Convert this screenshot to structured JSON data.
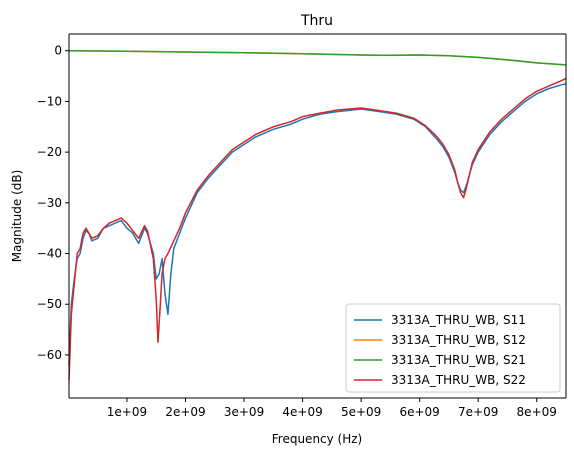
{
  "chart_data": {
    "type": "line",
    "title": "Thru",
    "xlabel": "Frequency (Hz)",
    "ylabel": "Magnitude (dB)",
    "xlim": [
      10000000,
      8500000000
    ],
    "ylim": [
      -68.5,
      3.3
    ],
    "x_ticks": [
      {
        "value": 1000000000,
        "label": "1e+09"
      },
      {
        "value": 2000000000,
        "label": "2e+09"
      },
      {
        "value": 3000000000,
        "label": "3e+09"
      },
      {
        "value": 4000000000,
        "label": "4e+09"
      },
      {
        "value": 5000000000,
        "label": "5e+09"
      },
      {
        "value": 6000000000,
        "label": "6e+09"
      },
      {
        "value": 7000000000,
        "label": "7e+09"
      },
      {
        "value": 8000000000,
        "label": "8e+09"
      }
    ],
    "y_ticks": [
      {
        "value": 0,
        "label": "0"
      },
      {
        "value": -10,
        "label": "−10"
      },
      {
        "value": -20,
        "label": "−20"
      },
      {
        "value": -30,
        "label": "−30"
      },
      {
        "value": -40,
        "label": "−40"
      },
      {
        "value": -50,
        "label": "−50"
      },
      {
        "value": -60,
        "label": "−60"
      }
    ],
    "grid": false,
    "legend_position": "bottom-right",
    "series": [
      {
        "name": "3313A_THRU_WB, S11",
        "color": "#1f77b4",
        "x": [
          10000000,
          50000000,
          100000000,
          150000000,
          200000000,
          250000000,
          300000000,
          350000000,
          400000000,
          500000000,
          600000000,
          700000000,
          800000000,
          900000000,
          1000000000,
          1100000000,
          1200000000,
          1300000000,
          1350000000,
          1450000000,
          1500000000,
          1550000000,
          1600000000,
          1650000000,
          1700000000,
          1750000000,
          1800000000,
          1900000000,
          2000000000,
          2200000000,
          2400000000,
          2600000000,
          2800000000,
          3000000000,
          3200000000,
          3500000000,
          3800000000,
          4000000000,
          4300000000,
          4600000000,
          5000000000,
          5300000000,
          5600000000,
          5900000000,
          6100000000,
          6300000000,
          6400000000,
          6500000000,
          6600000000,
          6650000000,
          6700000000,
          6750000000,
          6800000000,
          6900000000,
          7000000000,
          7200000000,
          7400000000,
          7600000000,
          7800000000,
          8000000000,
          8200000000,
          8400000000,
          8500000000
        ],
        "y": [
          -62,
          -50,
          -45,
          -41,
          -40,
          -37,
          -35.5,
          -36,
          -37.5,
          -37,
          -35,
          -34.5,
          -34,
          -33.5,
          -35,
          -36,
          -38,
          -35,
          -36,
          -40,
          -45,
          -44,
          -41,
          -48,
          -52,
          -44,
          -39,
          -36,
          -33,
          -28,
          -25,
          -22.5,
          -20,
          -18.5,
          -17,
          -15.5,
          -14.5,
          -13.5,
          -12.5,
          -12,
          -11.5,
          -12,
          -12.5,
          -13.5,
          -15,
          -17.5,
          -19,
          -21,
          -24,
          -26,
          -27.5,
          -28,
          -26.5,
          -22.5,
          -20,
          -16.5,
          -14,
          -12,
          -10,
          -8.5,
          -7.5,
          -6.8,
          -6.5
        ]
      },
      {
        "name": "3313A_THRU_WB, S12",
        "color": "#ff7f0e",
        "x": [
          10000000,
          1000000000,
          2000000000,
          3000000000,
          4000000000,
          5000000000,
          5500000000,
          6000000000,
          6500000000,
          7000000000,
          7500000000,
          8000000000,
          8500000000
        ],
        "y": [
          0,
          -0.1,
          -0.25,
          -0.4,
          -0.6,
          -0.85,
          -0.9,
          -0.85,
          -1.0,
          -1.3,
          -1.8,
          -2.4,
          -2.8
        ]
      },
      {
        "name": "3313A_THRU_WB, S21",
        "color": "#2ca02c",
        "x": [
          10000000,
          1000000000,
          2000000000,
          3000000000,
          4000000000,
          5000000000,
          5500000000,
          6000000000,
          6500000000,
          7000000000,
          7500000000,
          8000000000,
          8500000000
        ],
        "y": [
          0,
          -0.1,
          -0.25,
          -0.4,
          -0.6,
          -0.85,
          -0.9,
          -0.85,
          -1.0,
          -1.3,
          -1.8,
          -2.4,
          -2.8
        ]
      },
      {
        "name": "3313A_THRU_WB, S22",
        "color": "#d62728",
        "x": [
          10000000,
          50000000,
          100000000,
          150000000,
          200000000,
          250000000,
          300000000,
          350000000,
          400000000,
          500000000,
          600000000,
          700000000,
          800000000,
          900000000,
          1000000000,
          1100000000,
          1200000000,
          1300000000,
          1350000000,
          1450000000,
          1500000000,
          1530000000,
          1560000000,
          1600000000,
          1650000000,
          1700000000,
          1800000000,
          1900000000,
          2000000000,
          2200000000,
          2400000000,
          2600000000,
          2800000000,
          3000000000,
          3200000000,
          3500000000,
          3800000000,
          4000000000,
          4300000000,
          4600000000,
          5000000000,
          5300000000,
          5600000000,
          5900000000,
          6100000000,
          6300000000,
          6400000000,
          6500000000,
          6600000000,
          6650000000,
          6700000000,
          6750000000,
          6800000000,
          6900000000,
          7000000000,
          7200000000,
          7400000000,
          7600000000,
          7800000000,
          8000000000,
          8200000000,
          8400000000,
          8500000000
        ],
        "y": [
          -65,
          -52,
          -46,
          -40,
          -39,
          -36,
          -35,
          -36,
          -37,
          -36.5,
          -35,
          -34,
          -33.5,
          -33,
          -34,
          -35.5,
          -37,
          -34.5,
          -35.5,
          -41,
          -49,
          -57.5,
          -52,
          -44,
          -41,
          -40,
          -37.5,
          -35,
          -32,
          -27.5,
          -24.5,
          -22,
          -19.5,
          -18,
          -16.5,
          -15,
          -14,
          -13,
          -12.3,
          -11.7,
          -11.3,
          -11.8,
          -12.3,
          -13.3,
          -14.8,
          -17,
          -18.5,
          -20.5,
          -23.5,
          -26,
          -28,
          -29,
          -27,
          -22,
          -19.5,
          -16,
          -13.5,
          -11.5,
          -9.5,
          -8,
          -7,
          -6,
          -5.5
        ]
      }
    ]
  }
}
